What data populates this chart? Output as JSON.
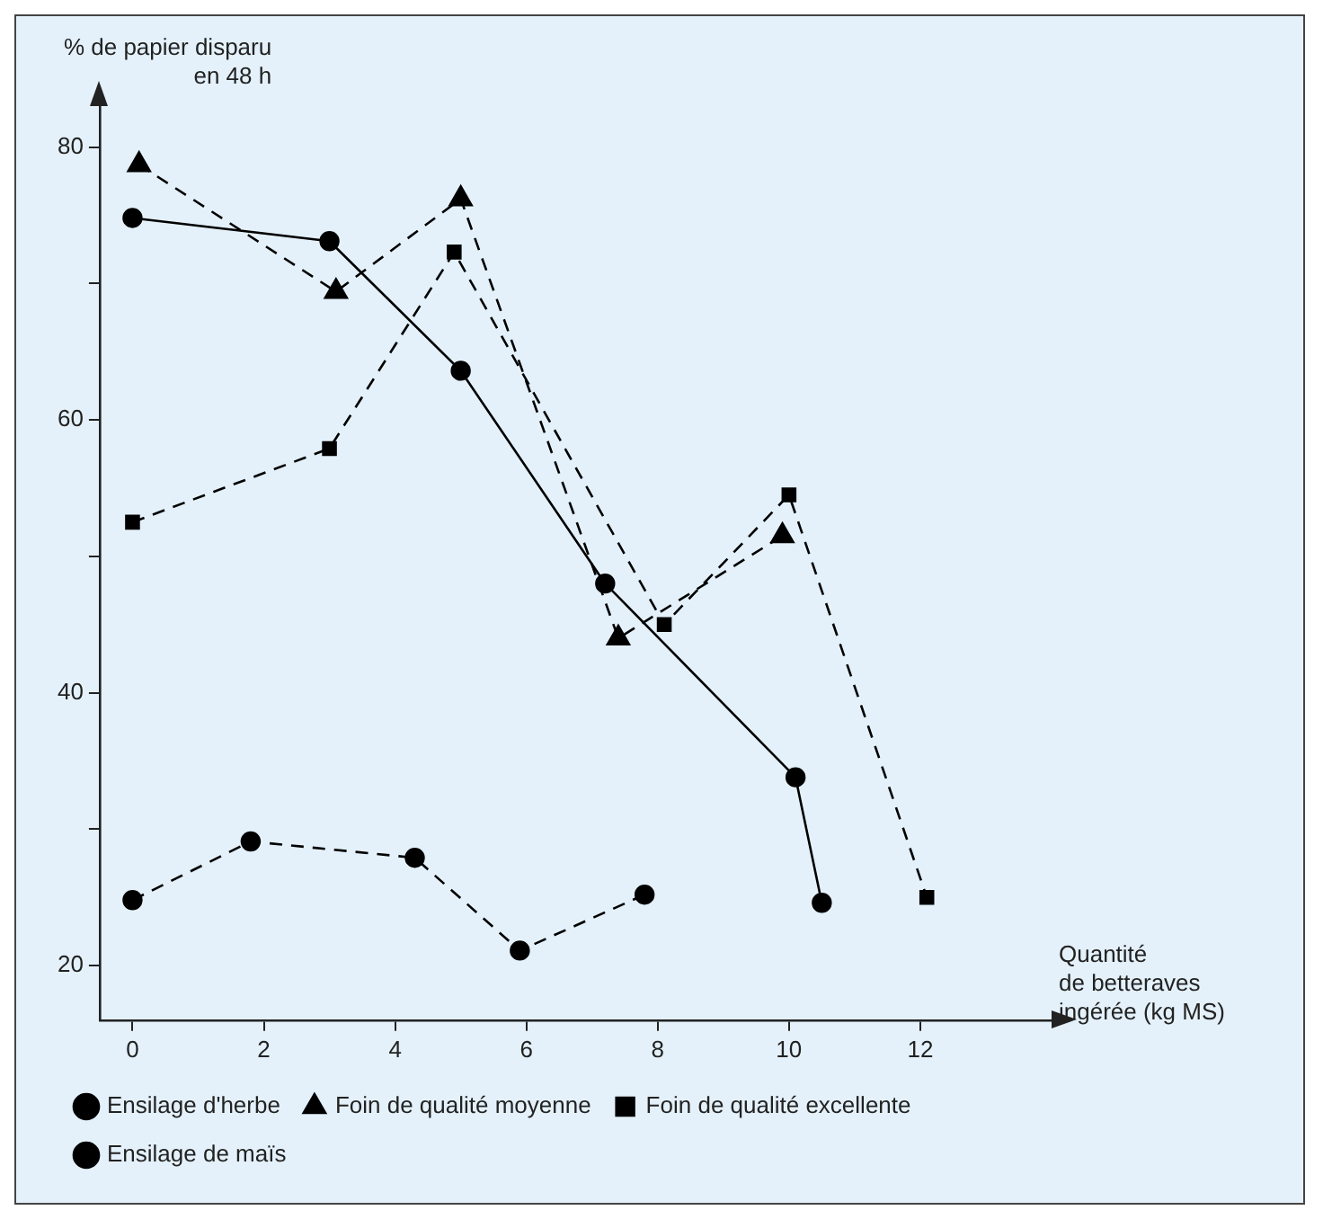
{
  "chart_data": {
    "type": "line",
    "ylabel": "% de papier disparu\nen 48 h",
    "xlabel": "Quantité\nde betteraves\ningérée (kg MS)",
    "xlim": [
      -0.5,
      14
    ],
    "xticks": [
      0,
      2,
      4,
      6,
      8,
      10,
      12
    ],
    "ylim": [
      16,
      83
    ],
    "yticks": [
      {
        "value": 20,
        "label": "20"
      },
      {
        "value": 30,
        "label": null
      },
      {
        "value": 40,
        "label": "40"
      },
      {
        "value": 50,
        "label": null
      },
      {
        "value": 60,
        "label": "60"
      },
      {
        "value": 70,
        "label": null
      },
      {
        "value": 80,
        "label": "80"
      }
    ],
    "grid": false,
    "legend": "bottom",
    "series": [
      {
        "name": "Ensilage d'herbe",
        "color": "#000000",
        "marker": "circle",
        "line_style": "solid",
        "x": [
          0,
          3.0,
          5.0,
          7.2,
          10.1,
          10.5
        ],
        "values": [
          74.8,
          73.1,
          63.6,
          48,
          33.8,
          24.6
        ]
      },
      {
        "name": "Foin de qualité moyenne",
        "color": "#000000",
        "marker": "triangle",
        "line_style": "dashed",
        "x": [
          0.1,
          3.1,
          5.0,
          7.4,
          9.9
        ],
        "values": [
          78.7,
          69.4,
          76.2,
          44,
          51.5
        ]
      },
      {
        "name": "Foin de qualité excellente",
        "color": "#000000",
        "marker": "square",
        "line_style": "dashed",
        "x": [
          0,
          3.0,
          4.9,
          8.1,
          10.0,
          12.1
        ],
        "values": [
          52.5,
          57.9,
          72.3,
          45,
          54.5,
          25
        ]
      },
      {
        "name": "Ensilage de maïs",
        "color": "#000000",
        "marker": "circle",
        "line_style": "dashed",
        "x": [
          0,
          1.8,
          4.3,
          5.9,
          7.8
        ],
        "values": [
          24.8,
          29.1,
          27.9,
          21.1,
          25.2
        ]
      }
    ]
  }
}
